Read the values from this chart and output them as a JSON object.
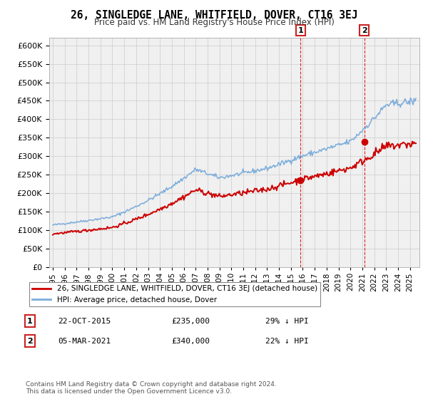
{
  "title": "26, SINGLEDGE LANE, WHITFIELD, DOVER, CT16 3EJ",
  "subtitle": "Price paid vs. HM Land Registry's House Price Index (HPI)",
  "ylim": [
    0,
    620000
  ],
  "yticks": [
    0,
    50000,
    100000,
    150000,
    200000,
    250000,
    300000,
    350000,
    400000,
    450000,
    500000,
    550000,
    600000
  ],
  "sale1_date_num": 2015.81,
  "sale1_price": 235000,
  "sale1_label": "1",
  "sale2_date_num": 2021.17,
  "sale2_price": 340000,
  "sale2_label": "2",
  "hpi_color": "#7aacdb",
  "price_color": "#cc0000",
  "vline_color": "#dd2222",
  "annotation_box_color": "#cc2222",
  "legend_label_price": "26, SINGLEDGE LANE, WHITFIELD, DOVER, CT16 3EJ (detached house)",
  "legend_label_hpi": "HPI: Average price, detached house, Dover",
  "footnote": "Contains HM Land Registry data © Crown copyright and database right 2024.\nThis data is licensed under the Open Government Licence v3.0.",
  "background_color": "#ffffff",
  "plot_bg_color": "#f0f0f0"
}
